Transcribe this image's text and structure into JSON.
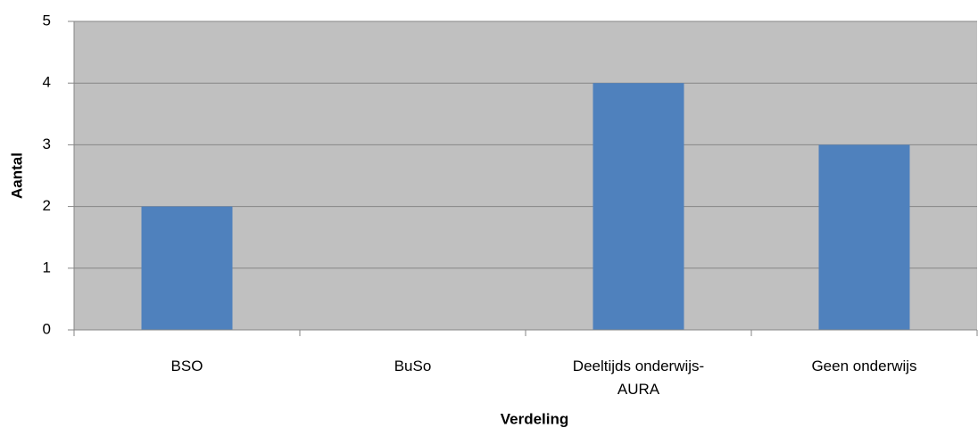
{
  "chart_data": {
    "type": "bar",
    "categories": [
      "BSO",
      "BuSo",
      "Deeltijds onderwijs-AURA",
      "Geen onderwijs"
    ],
    "values": [
      2,
      0,
      4,
      3
    ],
    "color": "#4f81bd",
    "plot_background": "#c0c0c0",
    "x_label": "Verdeling",
    "y_label": "Aantal",
    "ylim": [
      0,
      5
    ],
    "yticks": [
      0,
      1,
      2,
      3,
      4,
      5
    ],
    "grid": true
  }
}
